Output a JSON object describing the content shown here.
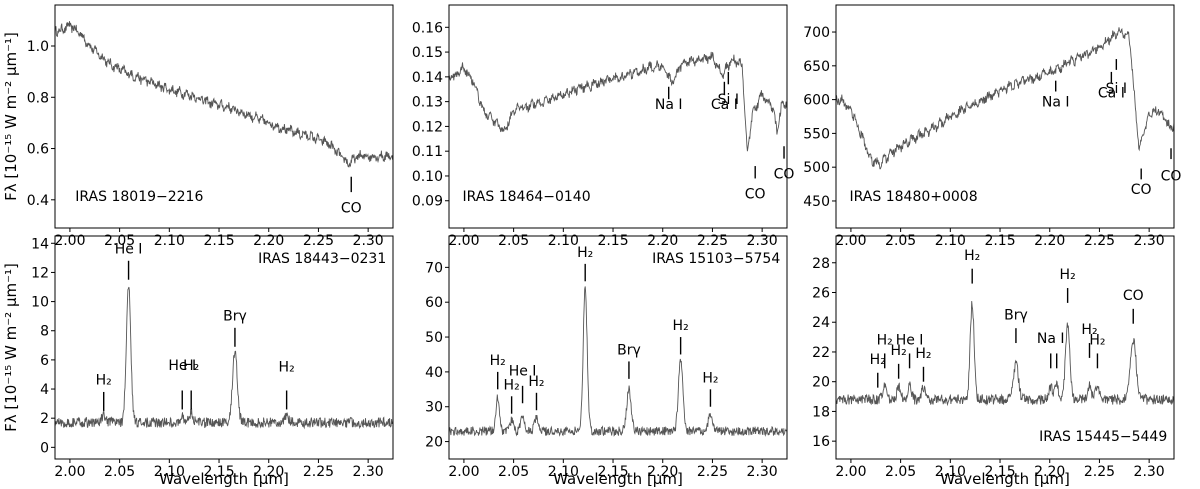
{
  "colors": {
    "spectrum": "#555555",
    "axes": "#000000",
    "background": "#ffffff"
  },
  "chart_data": [
    {
      "type": "line",
      "label": "IRAS 18019−2216",
      "xlim": [
        1.985,
        2.325
      ],
      "ylim": [
        0.29,
        1.16
      ],
      "xticks": [
        2.0,
        2.05,
        2.1,
        2.15,
        2.2,
        2.25,
        2.3
      ],
      "yticks": [
        0.4,
        0.6,
        0.8,
        1.0
      ],
      "ytick_labels": [
        "0.4",
        "0.6",
        "0.8",
        "1.0"
      ],
      "ylabel": "Fλ [10⁻¹⁵ W m⁻² μm⁻¹]",
      "xlabel": "",
      "series": [
        {
          "x": [
            1.99,
            2.0,
            2.01,
            2.02,
            2.04,
            2.06,
            2.08,
            2.1,
            2.12,
            2.14,
            2.16,
            2.18,
            2.2,
            2.22,
            2.24,
            2.26,
            2.28,
            2.29,
            2.3,
            2.32
          ],
          "y": [
            1.06,
            1.08,
            1.05,
            1.0,
            0.93,
            0.89,
            0.86,
            0.83,
            0.81,
            0.78,
            0.76,
            0.73,
            0.7,
            0.67,
            0.65,
            0.62,
            0.54,
            0.57,
            0.57,
            0.57
          ]
        }
      ],
      "annotations": [
        {
          "text": "CO",
          "x": 2.283,
          "tick_y": [
            0.43,
            0.49
          ],
          "text_y": 0.35
        }
      ]
    },
    {
      "type": "line",
      "label": "IRAS 18464−0140",
      "xlim": [
        1.985,
        2.325
      ],
      "ylim": [
        0.079,
        0.169
      ],
      "xticks": [
        2.0,
        2.05,
        2.1,
        2.15,
        2.2,
        2.25,
        2.3
      ],
      "yticks": [
        0.09,
        0.1,
        0.11,
        0.12,
        0.13,
        0.14,
        0.15,
        0.16
      ],
      "ytick_labels": [
        "0.09",
        "0.10",
        "0.11",
        "0.12",
        "0.13",
        "0.14",
        "0.15",
        "0.16"
      ],
      "xlabel": "",
      "ylabel": "",
      "series": [
        {
          "x": [
            1.99,
            2.0,
            2.01,
            2.02,
            2.03,
            2.04,
            2.05,
            2.06,
            2.08,
            2.1,
            2.12,
            2.14,
            2.16,
            2.18,
            2.2,
            2.21,
            2.22,
            2.24,
            2.25,
            2.26,
            2.27,
            2.28,
            2.285,
            2.29,
            2.3,
            2.31,
            2.315,
            2.32
          ],
          "y": [
            0.14,
            0.144,
            0.138,
            0.126,
            0.122,
            0.118,
            0.126,
            0.128,
            0.13,
            0.133,
            0.136,
            0.138,
            0.14,
            0.143,
            0.145,
            0.137,
            0.146,
            0.147,
            0.148,
            0.141,
            0.147,
            0.145,
            0.108,
            0.125,
            0.133,
            0.128,
            0.118,
            0.129
          ]
        }
      ],
      "annotations": [
        {
          "text": "Na I",
          "x": 2.206,
          "tick_y": [
            0.131,
            0.136
          ],
          "text_y": 0.127
        },
        {
          "text": "Ca I",
          "x": 2.262,
          "tick_y": [
            0.133,
            0.138
          ],
          "text_y": 0.127
        },
        {
          "text": "Si I",
          "x": 2.266,
          "tick_y": [
            0.137,
            0.142
          ],
          "text_y": 0.129
        },
        {
          "text": "CO",
          "x": 2.293,
          "tick_y": [
            0.099,
            0.104
          ],
          "text_y": 0.091
        },
        {
          "text": "CO",
          "x": 2.322,
          "tick_y": [
            0.107,
            0.112
          ],
          "text_y": 0.099
        }
      ]
    },
    {
      "type": "line",
      "label": "IRAS 18480+0008",
      "xlim": [
        1.985,
        2.325
      ],
      "ylim": [
        410,
        740
      ],
      "xticks": [
        2.0,
        2.05,
        2.1,
        2.15,
        2.2,
        2.25,
        2.3
      ],
      "yticks": [
        450,
        500,
        550,
        600,
        650,
        700
      ],
      "ytick_labels": [
        "450",
        "500",
        "550",
        "600",
        "650",
        "700"
      ],
      "xlabel": "",
      "ylabel": "",
      "series": [
        {
          "x": [
            1.99,
            2.0,
            2.01,
            2.02,
            2.03,
            2.04,
            2.06,
            2.08,
            2.1,
            2.12,
            2.14,
            2.16,
            2.18,
            2.2,
            2.22,
            2.24,
            2.26,
            2.27,
            2.28,
            2.29,
            2.3,
            2.31,
            2.32
          ],
          "y": [
            600,
            585,
            550,
            510,
            505,
            520,
            540,
            555,
            575,
            590,
            605,
            620,
            630,
            640,
            655,
            670,
            690,
            700,
            695,
            525,
            580,
            585,
            560
          ]
        }
      ],
      "annotations": [
        {
          "text": "Na I",
          "x": 2.206,
          "tick_y": [
            612,
            628
          ],
          "text_y": 590
        },
        {
          "text": "Ca I",
          "x": 2.262,
          "tick_y": [
            625,
            641
          ],
          "text_y": 603
        },
        {
          "text": "Si I",
          "x": 2.267,
          "tick_y": [
            644,
            660
          ],
          "text_y": 610
        },
        {
          "text": "CO",
          "x": 2.292,
          "tick_y": [
            482,
            498
          ],
          "text_y": 460
        },
        {
          "text": "CO",
          "x": 2.322,
          "tick_y": [
            512,
            528
          ],
          "text_y": 480
        }
      ]
    },
    {
      "type": "line",
      "label": "IRAS 18443−0231",
      "xlim": [
        1.985,
        2.325
      ],
      "ylim": [
        -0.8,
        14.5
      ],
      "xticks": [
        2.0,
        2.05,
        2.1,
        2.15,
        2.2,
        2.25,
        2.3
      ],
      "yticks": [
        0,
        2,
        4,
        6,
        8,
        10,
        12,
        14
      ],
      "ytick_labels": [
        "0",
        "2",
        "4",
        "6",
        "8",
        "10",
        "12",
        "14"
      ],
      "ylabel": "Fλ [10⁻¹⁵ W m⁻² μm⁻¹]",
      "xlabel": "Wavelength [μm]",
      "baseline": 1.7,
      "noise": 0.35,
      "lines": [
        {
          "center": 2.034,
          "peak": 0.5,
          "width": 0.0018
        },
        {
          "center": 2.059,
          "peak": 9.4,
          "width": 0.0022
        },
        {
          "center": 2.113,
          "peak": 0.4,
          "width": 0.0018
        },
        {
          "center": 2.122,
          "peak": 0.7,
          "width": 0.002
        },
        {
          "center": 2.166,
          "peak": 5.0,
          "width": 0.0024
        },
        {
          "center": 2.218,
          "peak": 0.4,
          "width": 0.002
        }
      ],
      "annotations": [
        {
          "text": "H₂",
          "x": 2.034,
          "tick_y": [
            2.5,
            3.8
          ],
          "text_y": 4.3
        },
        {
          "text": "He I",
          "x": 2.059,
          "tick_y": [
            11.5,
            12.8
          ],
          "text_y": 13.3
        },
        {
          "text": "He I",
          "x": 2.113,
          "tick_y": [
            2.6,
            3.9
          ],
          "text_y": 5.3
        },
        {
          "text": "H₂",
          "x": 2.122,
          "tick_y": [
            2.6,
            3.9
          ],
          "text_y": 5.3
        },
        {
          "text": "Brγ",
          "x": 2.166,
          "tick_y": [
            6.9,
            8.2
          ],
          "text_y": 8.7
        },
        {
          "text": "H₂",
          "x": 2.218,
          "tick_y": [
            2.6,
            3.9
          ],
          "text_y": 5.2
        }
      ]
    },
    {
      "type": "line",
      "label": "IRAS 15103−5754",
      "xlim": [
        1.985,
        2.325
      ],
      "ylim": [
        15,
        79
      ],
      "xticks": [
        2.0,
        2.05,
        2.1,
        2.15,
        2.2,
        2.25,
        2.3
      ],
      "yticks": [
        20,
        30,
        40,
        50,
        60,
        70
      ],
      "ytick_labels": [
        "20",
        "30",
        "40",
        "50",
        "60",
        "70"
      ],
      "xlabel": "Wavelength [μm]",
      "ylabel": "",
      "baseline": 23,
      "noise": 1.3,
      "lines": [
        {
          "center": 2.034,
          "peak": 10,
          "width": 0.0018
        },
        {
          "center": 2.048,
          "peak": 3,
          "width": 0.0018
        },
        {
          "center": 2.059,
          "peak": 4,
          "width": 0.0018
        },
        {
          "center": 2.073,
          "peak": 4,
          "width": 0.0018
        },
        {
          "center": 2.122,
          "peak": 41,
          "width": 0.002
        },
        {
          "center": 2.166,
          "peak": 12,
          "width": 0.0022
        },
        {
          "center": 2.218,
          "peak": 20,
          "width": 0.0022
        },
        {
          "center": 2.248,
          "peak": 5,
          "width": 0.002
        }
      ],
      "annotations": [
        {
          "text": "H₂",
          "x": 2.034,
          "tick_y": [
            35,
            40
          ],
          "text_y": 42
        },
        {
          "text": "H₂",
          "x": 2.048,
          "tick_y": [
            28,
            33
          ],
          "text_y": 35
        },
        {
          "text": "He I",
          "x": 2.059,
          "tick_y": [
            31,
            36
          ],
          "text_y": 39
        },
        {
          "text": "H₂",
          "x": 2.073,
          "tick_y": [
            29,
            34
          ],
          "text_y": 36
        },
        {
          "text": "H₂",
          "x": 2.122,
          "tick_y": [
            66,
            71
          ],
          "text_y": 73
        },
        {
          "text": "Brγ",
          "x": 2.166,
          "tick_y": [
            38,
            43
          ],
          "text_y": 45
        },
        {
          "text": "H₂",
          "x": 2.218,
          "tick_y": [
            45,
            50
          ],
          "text_y": 52
        },
        {
          "text": "H₂",
          "x": 2.248,
          "tick_y": [
            30,
            35
          ],
          "text_y": 37
        }
      ]
    },
    {
      "type": "line",
      "label": "IRAS 15445−5449",
      "xlim": [
        1.985,
        2.325
      ],
      "ylim": [
        14.8,
        29.8
      ],
      "xticks": [
        2.0,
        2.05,
        2.1,
        2.15,
        2.2,
        2.25,
        2.3
      ],
      "yticks": [
        16,
        18,
        20,
        22,
        24,
        26,
        28
      ],
      "ytick_labels": [
        "16",
        "18",
        "20",
        "22",
        "24",
        "26",
        "28"
      ],
      "xlabel": "Wavelength [μm]",
      "ylabel": "",
      "baseline": 18.8,
      "noise": 0.35,
      "lines": [
        {
          "center": 2.034,
          "peak": 1.0,
          "width": 0.0018
        },
        {
          "center": 2.048,
          "peak": 0.8,
          "width": 0.0018
        },
        {
          "center": 2.059,
          "peak": 1.0,
          "width": 0.0018
        },
        {
          "center": 2.073,
          "peak": 0.8,
          "width": 0.0018
        },
        {
          "center": 2.122,
          "peak": 6.5,
          "width": 0.002
        },
        {
          "center": 2.166,
          "peak": 2.5,
          "width": 0.0024
        },
        {
          "center": 2.201,
          "peak": 0.8,
          "width": 0.0018
        },
        {
          "center": 2.207,
          "peak": 1.0,
          "width": 0.0018
        },
        {
          "center": 2.218,
          "peak": 5.0,
          "width": 0.0022
        },
        {
          "center": 2.24,
          "peak": 1.0,
          "width": 0.0018
        },
        {
          "center": 2.248,
          "peak": 1.0,
          "width": 0.0018
        },
        {
          "center": 2.284,
          "peak": 4.0,
          "width": 0.003
        }
      ],
      "annotations": [
        {
          "text": "H₂",
          "x": 2.027,
          "tick_y": [
            19.6,
            20.6
          ],
          "text_y": 21.2
        },
        {
          "text": "H₂",
          "x": 2.034,
          "tick_y": [
            20.9,
            21.9
          ],
          "text_y": 22.5
        },
        {
          "text": "H₂",
          "x": 2.048,
          "tick_y": [
            20.2,
            21.2
          ],
          "text_y": 21.8
        },
        {
          "text": "He I",
          "x": 2.059,
          "tick_y": [
            20.9,
            21.9
          ],
          "text_y": 22.5
        },
        {
          "text": "H₂",
          "x": 2.073,
          "tick_y": [
            20.0,
            21.0
          ],
          "text_y": 21.6
        },
        {
          "text": "H₂",
          "x": 2.122,
          "tick_y": [
            26.6,
            27.6
          ],
          "text_y": 28.2
        },
        {
          "text": "Brγ",
          "x": 2.166,
          "tick_y": [
            22.6,
            23.6
          ],
          "text_y": 24.2
        },
        {
          "text": "Na I",
          "x": 2.201,
          "tick_y": [
            20.9,
            21.9
          ],
          "text_y": 22.6
        },
        {
          "text": "",
          "x": 2.207,
          "tick_y": [
            20.9,
            21.9
          ],
          "text_y": 22.6
        },
        {
          "text": "H₂",
          "x": 2.218,
          "tick_y": [
            25.3,
            26.3
          ],
          "text_y": 26.9
        },
        {
          "text": "H₂",
          "x": 2.24,
          "tick_y": [
            21.6,
            22.6
          ],
          "text_y": 23.2
        },
        {
          "text": "H₂",
          "x": 2.248,
          "tick_y": [
            20.9,
            21.9
          ],
          "text_y": 22.5
        },
        {
          "text": "CO",
          "x": 2.284,
          "tick_y": [
            23.9,
            24.9
          ],
          "text_y": 25.5
        }
      ]
    }
  ]
}
